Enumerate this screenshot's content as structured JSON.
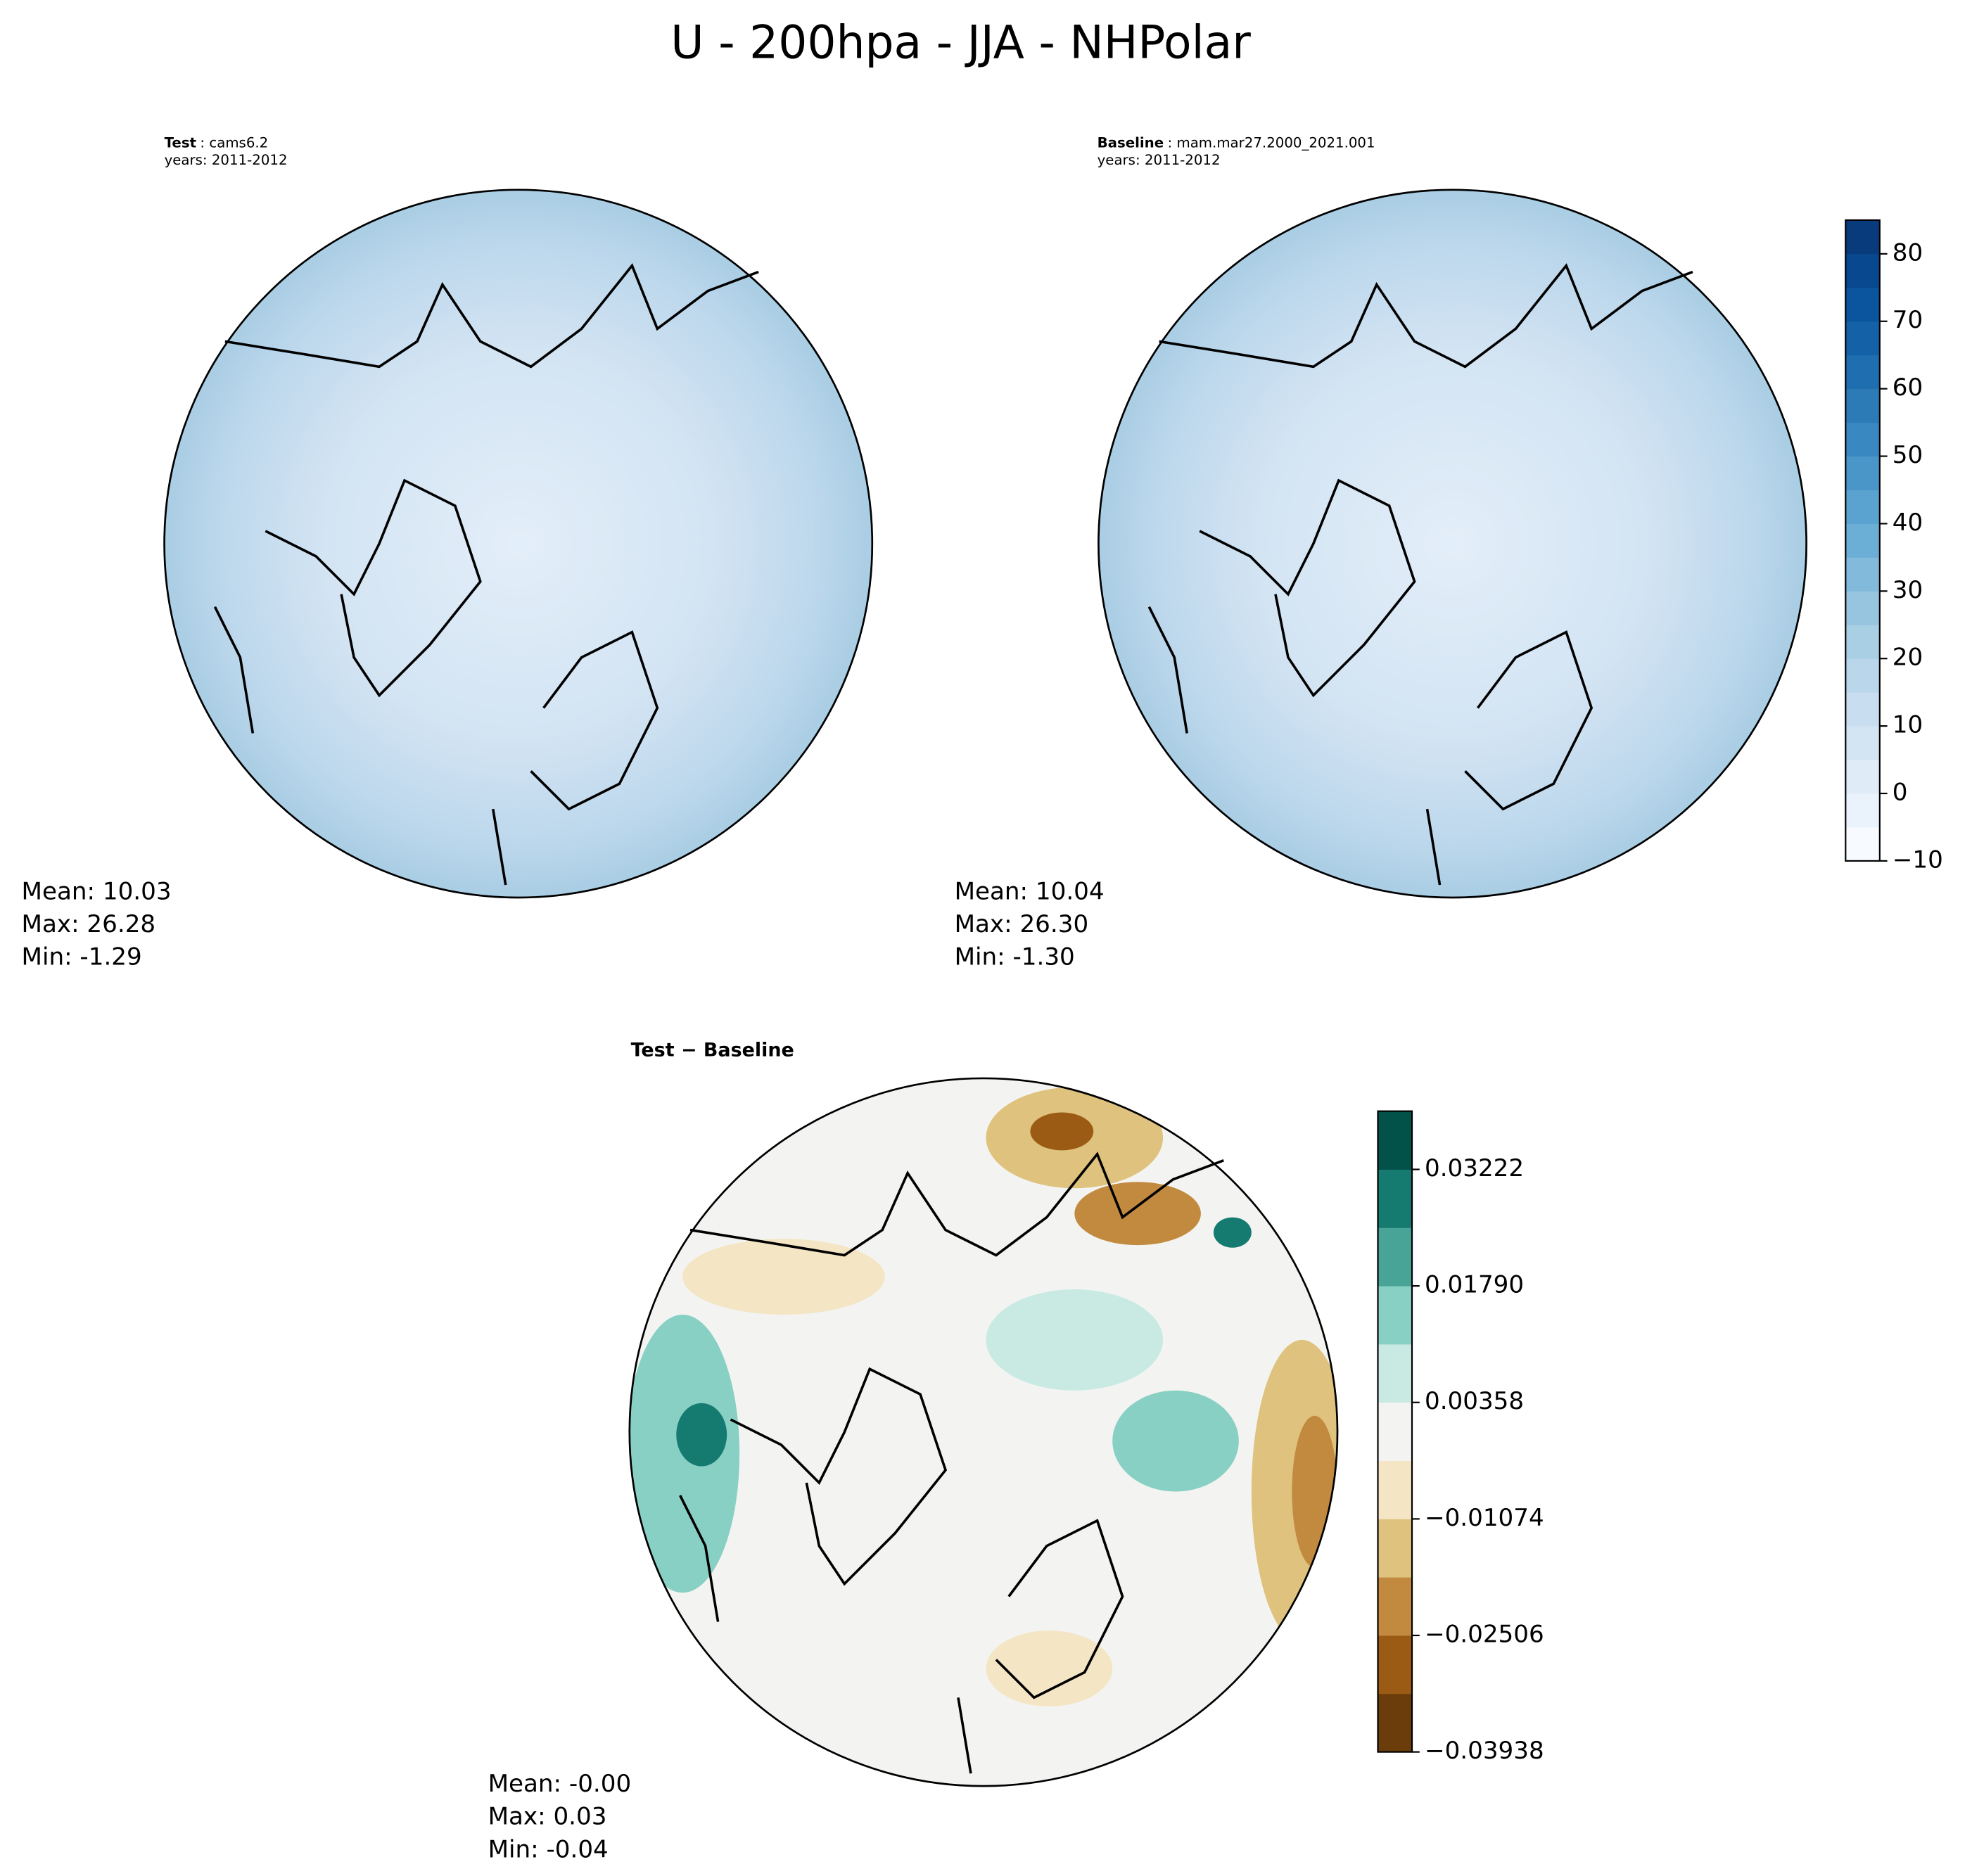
{
  "title": "U - 200hpa - JJA - NHPolar",
  "panels": [
    {
      "label": "Test",
      "case": ": cams6.2",
      "years": "years: 2011-2012",
      "mean": "Mean: 10.03",
      "max": "Max: 26.28",
      "min": "Min: -1.29"
    },
    {
      "label": "Baseline",
      "case": ": mam.mar27.2000_2021.001",
      "years": "years: 2011-2012",
      "mean": "Mean: 10.04",
      "max": "Max: 26.30",
      "min": "Min: -1.30"
    },
    {
      "label": "Test − Baseline",
      "mean": "Mean: -0.00",
      "max": "Max:  0.03",
      "min": "Min: -0.04"
    }
  ],
  "colorbars": [
    {
      "lim": [
        -10,
        85
      ],
      "levels": [
        -10,
        -5,
        0,
        5,
        10,
        15,
        20,
        25,
        30,
        35,
        40,
        45,
        50,
        55,
        60,
        65,
        70,
        75,
        80,
        85
      ],
      "colors": [
        "#f7fbff",
        "#eaf3fc",
        "#dfecf8",
        "#d3e4f3",
        "#c8ddf0",
        "#bad6eb",
        "#a9cfe5",
        "#97c5e0",
        "#82badb",
        "#6baed6",
        "#5aa2cf",
        "#4a96c9",
        "#3a88c1",
        "#2d7bb6",
        "#1f6eb0",
        "#1461a8",
        "#0b559f",
        "#08488e",
        "#083b7c"
      ],
      "ticks": [
        {
          "value": -10,
          "label": "−10"
        },
        0,
        10,
        20,
        30,
        40,
        50,
        60,
        70,
        80
      ]
    },
    {
      "lim": [
        -0.03938,
        0.03938
      ],
      "levels": [
        -0.03938,
        -0.03222,
        -0.02506,
        -0.0179,
        -0.01074,
        -0.00358,
        0.00358,
        0.01074,
        0.0179,
        0.02506,
        0.03222,
        0.03938
      ],
      "colors": [
        "#6a3d0a",
        "#9b5b15",
        "#c28a3f",
        "#dfc27d",
        "#f4e5c4",
        "#f3f4f1",
        "#c8eae2",
        "#88d0c4",
        "#47a497",
        "#157a70",
        "#02524a"
      ],
      "ticks": [
        {
          "value": -0.03938,
          "label": "−0.03938"
        },
        {
          "value": -0.02506,
          "label": "−0.02506"
        },
        {
          "value": -0.01074,
          "label": "−0.01074"
        },
        0.00358,
        {
          "value": 0.0179,
          "label": "0.01790"
        },
        0.03222
      ]
    }
  ]
}
